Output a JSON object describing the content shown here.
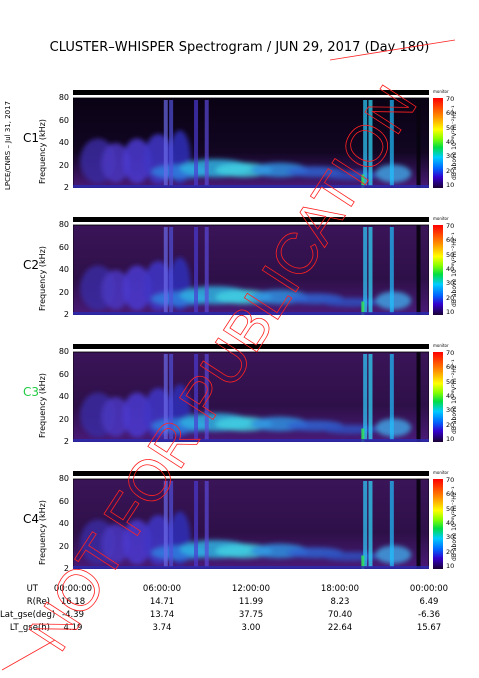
{
  "title": "CLUSTER–WHISPER Spectrogram / JUN 29, 2017 (Day 180)",
  "side_label": "LPCE/CNRS – Jul 31, 2017",
  "stamp_text": "NOT FOR PUBLICATION",
  "colors": {
    "accent_c3": "#22cc44",
    "stamp": "#ff2222"
  },
  "chart_data": {
    "type": "heatmap",
    "xlabel": "UT",
    "ylabel": "Frequency (kHz)",
    "ylim": [
      2,
      80
    ],
    "y_ticks": [
      "80",
      "60",
      "40",
      "20",
      "2"
    ],
    "x_ticks": [
      "00:00:00",
      "06:00:00",
      "12:00:00",
      "18:00:00",
      "00:00:00"
    ],
    "colorbar": {
      "ticks": [
        "70",
        "60",
        "50",
        "40",
        "30",
        "20",
        "10"
      ],
      "label": "dB above 10⁻⁸V²m⁻²Hz⁻¹",
      "range": [
        10,
        70
      ],
      "top_label": "monitor"
    },
    "panels": [
      {
        "name": "C1",
        "label_color": "#000000"
      },
      {
        "name": "C2",
        "label_color": "#000000"
      },
      {
        "name": "C3",
        "label_color": "#22cc44"
      },
      {
        "name": "C4",
        "label_color": "#000000"
      }
    ]
  },
  "ephemeris": [
    {
      "label": "R(Re)",
      "values": [
        "16.18",
        "14.71",
        "11.99",
        "8.23",
        "6.49"
      ]
    },
    {
      "label": "Lat_gse(deg)",
      "values": [
        "-4.39",
        "13.74",
        "37.75",
        "70.40",
        "-6.36"
      ]
    },
    {
      "label": "LT_gse(h)",
      "values": [
        "4.19",
        "3.74",
        "3.00",
        "22.64",
        "15.67"
      ]
    }
  ]
}
